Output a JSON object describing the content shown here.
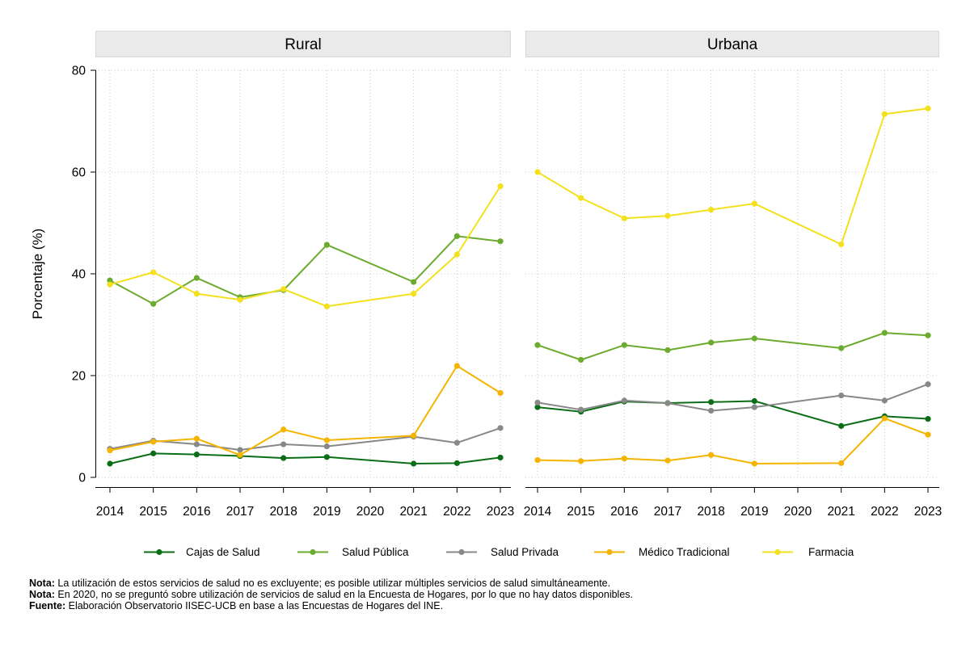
{
  "chart_data": {
    "type": "line",
    "ylabel": "Porcentaje (%)",
    "ylim": [
      0,
      80
    ],
    "yticks": [
      0,
      20,
      40,
      60,
      80
    ],
    "xticks": [
      "2014",
      "2015",
      "2016",
      "2017",
      "2018",
      "2019",
      "2020",
      "2021",
      "2022",
      "2023"
    ],
    "grid": true,
    "legend_position": "bottom",
    "colors": {
      "Cajas de Salud": "#0b6e16",
      "Salud Pública": "#6bab2e",
      "Salud Privada": "#888888",
      "Médico Tradicional": "#f5b400",
      "Farmacia": "#f2e11c"
    },
    "panels": [
      {
        "title": "Rural",
        "series": [
          {
            "name": "Cajas de Salud",
            "x": [
              2014,
              2015,
              2016,
              2017,
              2018,
              2019,
              2021,
              2022,
              2023
            ],
            "values": [
              2.7,
              4.7,
              4.5,
              4.2,
              3.8,
              4.0,
              2.7,
              2.8,
              3.9
            ]
          },
          {
            "name": "Salud Pública",
            "x": [
              2014,
              2015,
              2016,
              2017,
              2018,
              2019,
              2021,
              2022,
              2023
            ],
            "values": [
              38.7,
              34.1,
              39.2,
              35.4,
              36.8,
              45.7,
              38.4,
              47.4,
              46.4
            ]
          },
          {
            "name": "Salud Privada",
            "x": [
              2014,
              2015,
              2016,
              2017,
              2018,
              2019,
              2021,
              2022,
              2023
            ],
            "values": [
              5.6,
              7.2,
              6.5,
              5.4,
              6.5,
              6.1,
              8.0,
              6.8,
              9.7
            ]
          },
          {
            "name": "Médico Tradicional",
            "x": [
              2014,
              2015,
              2016,
              2017,
              2018,
              2019,
              2021,
              2022,
              2023
            ],
            "values": [
              5.3,
              7.0,
              7.6,
              4.4,
              9.4,
              7.3,
              8.2,
              21.9,
              16.6
            ]
          },
          {
            "name": "Farmacia",
            "x": [
              2014,
              2015,
              2016,
              2017,
              2018,
              2019,
              2021,
              2022,
              2023
            ],
            "values": [
              37.9,
              40.3,
              36.1,
              34.9,
              37.0,
              33.6,
              36.1,
              43.8,
              57.2
            ]
          }
        ]
      },
      {
        "title": "Urbana",
        "series": [
          {
            "name": "Cajas de Salud",
            "x": [
              2014,
              2015,
              2016,
              2017,
              2018,
              2019,
              2021,
              2022,
              2023
            ],
            "values": [
              13.8,
              12.9,
              14.9,
              14.6,
              14.8,
              15.0,
              10.1,
              12.0,
              11.5
            ]
          },
          {
            "name": "Salud Pública",
            "x": [
              2014,
              2015,
              2016,
              2017,
              2018,
              2019,
              2021,
              2022,
              2023
            ],
            "values": [
              26.0,
              23.1,
              26.0,
              25.0,
              26.5,
              27.3,
              25.4,
              28.4,
              27.9
            ]
          },
          {
            "name": "Salud Privada",
            "x": [
              2014,
              2015,
              2016,
              2017,
              2018,
              2019,
              2021,
              2022,
              2023
            ],
            "values": [
              14.7,
              13.3,
              15.1,
              14.6,
              13.1,
              13.8,
              16.1,
              15.1,
              18.3
            ]
          },
          {
            "name": "Médico Tradicional",
            "x": [
              2014,
              2015,
              2016,
              2017,
              2018,
              2019,
              2021,
              2022,
              2023
            ],
            "values": [
              3.4,
              3.2,
              3.7,
              3.3,
              4.4,
              2.7,
              2.8,
              11.6,
              8.4
            ]
          },
          {
            "name": "Farmacia",
            "x": [
              2014,
              2015,
              2016,
              2017,
              2018,
              2019,
              2021,
              2022,
              2023
            ],
            "values": [
              60.0,
              54.9,
              50.9,
              51.4,
              52.6,
              53.8,
              45.8,
              71.4,
              72.5
            ]
          }
        ]
      }
    ],
    "legend": [
      "Cajas de Salud",
      "Salud Pública",
      "Salud Privada",
      "Médico Tradicional",
      "Farmacia"
    ]
  },
  "notes": [
    {
      "label": "Nota:",
      "text": " La utilización de estos servicios de salud no es excluyente; es posible utilizar múltiples servicios de salud simultáneamente."
    },
    {
      "label": "Nota:",
      "text": " En 2020, no se preguntó sobre utilización de servicios de salud en la Encuesta de Hogares, por lo que no hay datos disponibles."
    },
    {
      "label": "Fuente:",
      "text": " Elaboración Observatorio IISEC-UCB en base a las Encuestas de Hogares del INE."
    }
  ]
}
